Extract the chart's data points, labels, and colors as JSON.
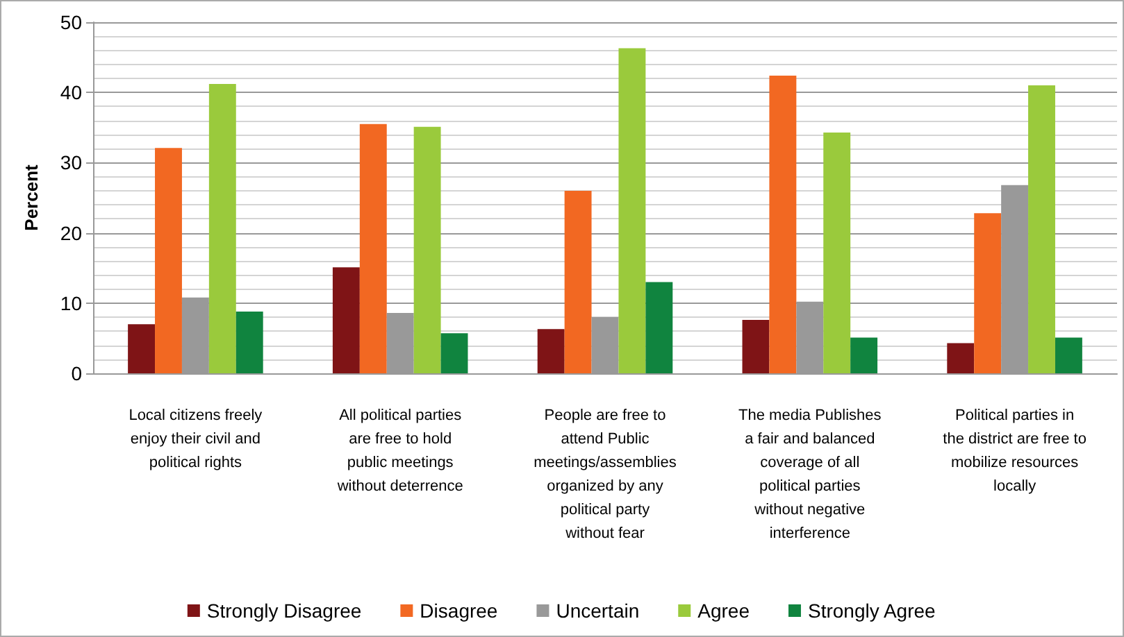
{
  "chart_data": {
    "type": "bar",
    "ylabel": "Percent",
    "categories": [
      "Local citizens freely\nenjoy their civil and\npolitical rights",
      "All political parties\nare free to hold\npublic meetings\nwithout deterrence",
      "People are free to\nattend Public\nmeetings/assemblies\norganized by any\npolitical party\nwithout fear",
      "The media Publishes\na fair and balanced\ncoverage of all\npolitical parties\nwithout negative\ninterference",
      "Political parties in\nthe district are free to\nmobilize resources\nlocally"
    ],
    "series": [
      {
        "name": "Strongly Disagree",
        "color": "#7f1416",
        "values": [
          7.0,
          15.1,
          6.3,
          7.6,
          4.3
        ]
      },
      {
        "name": "Disagree",
        "color": "#f26822",
        "values": [
          32.1,
          35.5,
          26.0,
          42.4,
          22.8
        ]
      },
      {
        "name": "Uncertain",
        "color": "#999999",
        "values": [
          10.8,
          8.6,
          8.0,
          10.2,
          26.8
        ]
      },
      {
        "name": "Agree",
        "color": "#9aca3c",
        "values": [
          41.2,
          35.1,
          46.3,
          34.3,
          41.0
        ]
      },
      {
        "name": "Strongly Agree",
        "color": "#10843f",
        "values": [
          8.8,
          5.7,
          13.0,
          5.1,
          5.1
        ]
      }
    ],
    "ylim": [
      0,
      50
    ],
    "yticks": [
      0,
      10,
      20,
      30,
      40,
      50
    ],
    "grid": true,
    "legend": "bottom"
  }
}
